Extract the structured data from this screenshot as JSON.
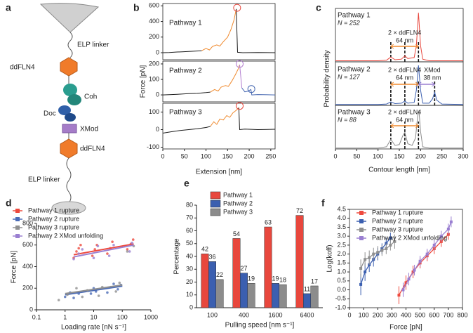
{
  "diagram": {
    "panel": "a",
    "labels": [
      "ELP linker",
      "ddFLN4",
      "Coh",
      "Doc",
      "XMod",
      "ddFLN4",
      "ELP linker"
    ]
  },
  "chart_data": [
    {
      "type": "line",
      "panel": "b",
      "label": "Pathway 1",
      "xlim": [
        0,
        260
      ],
      "ylim": [
        -90,
        630
      ],
      "yticks": [
        0,
        200,
        400,
        600
      ],
      "series": [
        {
          "color": "#1a1a1a",
          "x": [
            0,
            15,
            30,
            45,
            60,
            75,
            90
          ],
          "values": [
            0,
            3,
            8,
            12,
            15,
            20,
            25
          ]
        },
        {
          "color": "#f08a2e",
          "x": [
            90,
            100,
            108,
            115,
            125,
            132,
            140,
            150,
            158,
            165,
            170
          ],
          "values": [
            25,
            55,
            35,
            80,
            100,
            85,
            140,
            200,
            300,
            420,
            560
          ]
        },
        {
          "color": "#1a1a1a",
          "x": [
            170,
            173,
            185,
            220,
            260
          ],
          "values": [
            560,
            5,
            0,
            3,
            0
          ]
        },
        {
          "color": "#e8473d",
          "style": "ring",
          "x": [
            172
          ],
          "values": [
            575
          ]
        }
      ]
    },
    {
      "type": "line",
      "label": "Pathway 2",
      "ylabel": "Force [pN]",
      "xlim": [
        0,
        260
      ],
      "ylim": [
        -45,
        218
      ],
      "yticks": [
        0,
        100,
        200
      ],
      "series": [
        {
          "color": "#1a1a1a",
          "x": [
            0,
            20,
            40,
            60,
            80,
            100,
            110
          ],
          "values": [
            0,
            2,
            5,
            8,
            10,
            15,
            18
          ]
        },
        {
          "color": "#f08a2e",
          "x": [
            110,
            120,
            128,
            135,
            145,
            152,
            160,
            168,
            175,
            178
          ],
          "values": [
            18,
            35,
            25,
            50,
            60,
            55,
            90,
            130,
            170,
            195
          ]
        },
        {
          "color": "#b37fd0",
          "x": [
            178,
            183
          ],
          "values": [
            195,
            45
          ]
        },
        {
          "color": "#4466b0",
          "x": [
            183,
            190,
            198,
            204,
            206,
            220,
            260
          ],
          "values": [
            45,
            20,
            25,
            35,
            0,
            2,
            0
          ]
        },
        {
          "color": "#b37fd0",
          "style": "ring",
          "x": [
            178
          ],
          "values": [
            200
          ]
        },
        {
          "color": "#4466b0",
          "style": "ring",
          "x": [
            205
          ],
          "values": [
            38
          ]
        }
      ]
    },
    {
      "type": "line",
      "label": "Pathway 3",
      "xlabel": "Extension [nm]",
      "xlim": [
        0,
        260
      ],
      "ylim": [
        -110,
        150
      ],
      "yticks": [
        -100,
        0,
        100
      ],
      "xticks": [
        0,
        50,
        100,
        150,
        200,
        250
      ],
      "series": [
        {
          "color": "#1a1a1a",
          "x": [
            0,
            20,
            40,
            60,
            80,
            100,
            110
          ],
          "values": [
            -20,
            -12,
            -5,
            0,
            5,
            12,
            18
          ]
        },
        {
          "color": "#f08a2e",
          "x": [
            110,
            118,
            125,
            132,
            140,
            148,
            155,
            162,
            170,
            176
          ],
          "values": [
            18,
            45,
            30,
            60,
            55,
            80,
            70,
            95,
            110,
            125
          ]
        },
        {
          "color": "#1a1a1a",
          "x": [
            176,
            178,
            190,
            220,
            260
          ],
          "values": [
            125,
            0,
            3,
            0,
            2
          ]
        },
        {
          "color": "#e8473d",
          "style": "ring",
          "x": [
            178
          ],
          "values": [
            135
          ]
        }
      ]
    },
    {
      "type": "line",
      "panel": "c",
      "label": "Pathway 1",
      "n": "N = 252",
      "xlim": [
        0,
        300
      ],
      "ylim": [
        0,
        1
      ],
      "vlines": [
        130,
        163,
        195
      ],
      "annotations": [
        "2 × ddFLN4",
        "64 nm"
      ],
      "series": [
        {
          "color": "#e8473d",
          "x": [
            0,
            100,
            120,
            130,
            140,
            155,
            163,
            170,
            185,
            190,
            195,
            200,
            205,
            220,
            300
          ],
          "values": [
            0.02,
            0.02,
            0.03,
            0.09,
            0.04,
            0.05,
            0.11,
            0.06,
            0.08,
            0.3,
            0.92,
            0.3,
            0.05,
            0.02,
            0.02
          ]
        }
      ]
    },
    {
      "type": "line",
      "label": "Pathway 2",
      "n": "N = 127",
      "ylabel": "Probability density",
      "xlim": [
        0,
        300
      ],
      "ylim": [
        0,
        1
      ],
      "vlines": [
        130,
        163,
        195,
        233
      ],
      "annotations": [
        "2 × ddFLN4",
        "64 nm",
        "XMod",
        "38 nm"
      ],
      "series": [
        {
          "color": "#3b5fb0",
          "x": [
            0,
            100,
            120,
            130,
            140,
            155,
            163,
            170,
            185,
            190,
            195,
            200,
            205,
            220,
            228,
            233,
            238,
            250,
            300
          ],
          "values": [
            0.02,
            0.02,
            0.03,
            0.08,
            0.04,
            0.05,
            0.1,
            0.05,
            0.07,
            0.35,
            0.92,
            0.35,
            0.05,
            0.05,
            0.15,
            0.3,
            0.12,
            0.03,
            0.02
          ]
        }
      ]
    },
    {
      "type": "line",
      "label": "Pathway 3",
      "n": "N = 88",
      "xlabel": "Contour length [nm]",
      "xlim": [
        0,
        300
      ],
      "ylim": [
        0,
        1
      ],
      "xticks": [
        0,
        50,
        100,
        150,
        200,
        250,
        300
      ],
      "vlines": [
        130,
        163,
        195
      ],
      "annotations": [
        "2 × ddFLN4",
        "64 nm"
      ],
      "series": [
        {
          "color": "#8c8c8c",
          "x": [
            0,
            100,
            120,
            130,
            140,
            150,
            158,
            163,
            170,
            180,
            188,
            193,
            196,
            200,
            205,
            220,
            300
          ],
          "values": [
            0.02,
            0.02,
            0.05,
            0.22,
            0.08,
            0.1,
            0.3,
            0.38,
            0.12,
            0.08,
            0.25,
            0.75,
            0.88,
            0.4,
            0.05,
            0.02,
            0.02
          ]
        }
      ]
    },
    {
      "type": "scatter",
      "panel": "d",
      "xlabel": "Loading rate [nN s⁻¹]",
      "ylabel": "Force [pN]",
      "xlog": true,
      "xlim": [
        0.1,
        1000
      ],
      "xticks": [
        0.1,
        1,
        10,
        100,
        1000
      ],
      "ylim": [
        0,
        800
      ],
      "yticks": [
        0,
        200,
        400,
        600,
        800
      ],
      "legend": "upper left",
      "series": [
        {
          "name": "Pathway 1 rupture",
          "color": "#ee4a3e",
          "x": [
            2,
            2.5,
            3,
            3.5,
            9,
            11,
            13,
            30,
            38,
            45,
            150,
            200,
            240
          ],
          "values": [
            480,
            540,
            570,
            600,
            500,
            560,
            600,
            520,
            570,
            630,
            560,
            610,
            650
          ],
          "fit": {
            "x": [
              2,
              250
            ],
            "values": [
              510,
              610
            ]
          }
        },
        {
          "name": "Pathway 2 rupture",
          "color": "#4b6cb7",
          "x": [
            1,
            1.5,
            2,
            3,
            8,
            10,
            12,
            30,
            40,
            50,
            70,
            90
          ],
          "values": [
            120,
            160,
            110,
            150,
            150,
            200,
            170,
            160,
            210,
            240,
            190,
            230
          ],
          "fit": {
            "x": [
              1,
              100
            ],
            "values": [
              140,
              220
            ]
          }
        },
        {
          "name": "Pathway 3 rupture",
          "color": "#909090",
          "x": [
            0.6,
            1.2,
            2.5,
            4,
            6,
            15,
            20,
            60,
            80,
            150,
            250
          ],
          "values": [
            90,
            140,
            200,
            120,
            180,
            130,
            210,
            170,
            250,
            540,
            590
          ],
          "fit": {
            "x": [
              1,
              100
            ],
            "values": [
              150,
              230
            ]
          }
        },
        {
          "name": "Pathway 2 XMod unfolding",
          "color": "#9a7fd1",
          "x": [
            2,
            3,
            4,
            10,
            14,
            35,
            50,
            180,
            220
          ],
          "values": [
            470,
            520,
            560,
            480,
            590,
            500,
            600,
            540,
            620
          ],
          "fit": {
            "x": [
              2,
              250
            ],
            "values": [
              490,
              600
            ]
          }
        }
      ]
    },
    {
      "type": "bar",
      "panel": "e",
      "xlabel": "Pulling speed [nm s⁻¹]",
      "ylabel": "Percentage",
      "categories": [
        "100",
        "400",
        "1600",
        "6400"
      ],
      "ylim": [
        0,
        80
      ],
      "yticks": [
        0,
        10,
        20,
        30,
        40,
        50,
        60,
        70,
        80
      ],
      "legend": "upper left",
      "series": [
        {
          "name": "Pathway 1",
          "color": "#e8473d",
          "values": [
            42,
            54,
            63,
            72
          ]
        },
        {
          "name": "Pathway 2",
          "color": "#3b5fb0",
          "values": [
            36,
            27,
            19,
            11
          ]
        },
        {
          "name": "Pathway 3",
          "color": "#8c8c8c",
          "values": [
            22,
            19,
            18,
            17
          ]
        }
      ]
    },
    {
      "type": "line",
      "panel": "f",
      "xlabel": "Force [pN]",
      "ylabel": "Log(koff)",
      "xlim": [
        0,
        800
      ],
      "xticks": [
        0,
        100,
        200,
        300,
        400,
        500,
        600,
        700,
        800
      ],
      "ylim": [
        -1,
        4.5
      ],
      "yticks": [
        {
          "value": -1,
          "label": "-1.0"
        },
        -0.5,
        {
          "value": 0,
          "label": "0.0"
        },
        0.5,
        {
          "value": 1,
          "label": "1.0"
        },
        1.5,
        {
          "value": 2,
          "label": "2.0"
        },
        2.5,
        {
          "value": 3,
          "label": "3.0"
        },
        3.5,
        {
          "value": 4,
          "label": "4.0"
        },
        4.5
      ],
      "legend": "upper left",
      "series": [
        {
          "name": "Pathway 1 rupture",
          "color": "#ee4a3e",
          "x": [
            350,
            400,
            450,
            500,
            550,
            600,
            650,
            700
          ],
          "values": [
            -0.3,
            0.4,
            1.0,
            1.5,
            1.9,
            2.3,
            2.7,
            3.1
          ],
          "errors": [
            0.5,
            0.4,
            0.35,
            0.3,
            0.3,
            0.3,
            0.3,
            0.3
          ]
        },
        {
          "name": "Pathway 2 rupture",
          "color": "#3b5fb0",
          "x": [
            80,
            110,
            140,
            170,
            200,
            230,
            260,
            290
          ],
          "values": [
            0.3,
            1.0,
            1.4,
            1.7,
            2.0,
            2.3,
            2.6,
            2.9
          ],
          "errors": [
            0.6,
            0.5,
            0.4,
            0.4,
            0.35,
            0.3,
            0.3,
            0.3
          ]
        },
        {
          "name": "Pathway 3 rupture",
          "color": "#909090",
          "x": [
            80,
            110,
            140,
            170,
            200,
            230,
            260,
            290,
            320
          ],
          "values": [
            1.2,
            1.7,
            1.8,
            2.0,
            2.1,
            2.2,
            2.3,
            2.5,
            2.7
          ],
          "errors": [
            0.5,
            0.4,
            0.4,
            0.35,
            0.35,
            0.3,
            0.3,
            0.3,
            0.4
          ]
        },
        {
          "name": "Pathway 2 XMod unfolding",
          "color": "#9a7fd1",
          "x": [
            380,
            420,
            460,
            500,
            550,
            600,
            650,
            700,
            720
          ],
          "values": [
            0.0,
            0.6,
            1.1,
            1.6,
            2.0,
            2.5,
            3.0,
            3.4,
            3.8
          ],
          "errors": [
            0.4,
            0.35,
            0.3,
            0.3,
            0.3,
            0.3,
            0.3,
            0.3,
            0.3
          ]
        }
      ]
    }
  ]
}
